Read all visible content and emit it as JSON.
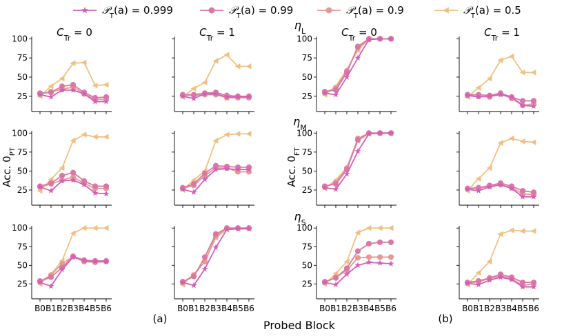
{
  "figure": {
    "xlabel": "Probed Block",
    "ylabel_left": "Acc. 0",
    "ylabel_sub": "PT",
    "ylabel_right": "Acc. 0",
    "ylabel_right_sub": "FT",
    "panel_a_label": "(a)",
    "panel_b_label": "(b)",
    "row_titles": [
      {
        "main": "η",
        "sub": "L"
      },
      {
        "main": "η",
        "sub": "M"
      },
      {
        "main": "η",
        "sub": "S"
      }
    ],
    "col_titles": [
      {
        "main": "C",
        "sub": "Tr",
        "rest": " = 0"
      },
      {
        "main": "C",
        "sub": "Tr",
        "rest": " = 1"
      },
      {
        "main": "C",
        "sub": "Tr",
        "rest": " = 0"
      },
      {
        "main": "C",
        "sub": "Tr",
        "rest": " = 1"
      }
    ]
  },
  "legend": [
    {
      "label": "𝒫",
      "sub": "T",
      "rest": "(a) = 0.999",
      "color": "#d35fb7",
      "marker": "star"
    },
    {
      "label": "𝒫",
      "sub": "T",
      "rest": "(a) = 0.99",
      "color": "#d978a6",
      "marker": "circle"
    },
    {
      "label": "𝒫",
      "sub": "T",
      "rest": "(a) = 0.9",
      "color": "#e69a93",
      "marker": "circle"
    },
    {
      "label": "𝒫",
      "sub": "T",
      "rest": "(a) = 0.5",
      "color": "#f0c080",
      "marker": "triangle"
    }
  ],
  "chart_data": {
    "type": "line",
    "categories": [
      "B0",
      "B1",
      "B2",
      "B3",
      "B4",
      "B5",
      "B6"
    ],
    "yticks": [
      25,
      50,
      75,
      100
    ],
    "ylim": [
      5,
      103
    ],
    "series_names": [
      "P_T(a) = 0.999",
      "P_T(a) = 0.99",
      "P_T(a) = 0.9",
      "P_T(a) = 0.5"
    ],
    "panels": [
      {
        "row": 0,
        "col": 0,
        "series": [
          [
            27,
            24,
            33,
            33,
            28,
            18,
            18
          ],
          [
            29,
            30,
            38,
            40,
            30,
            23,
            24
          ],
          [
            28,
            31,
            34,
            37,
            28,
            21,
            21
          ],
          [
            25,
            38,
            48,
            68,
            69,
            39,
            40
          ]
        ]
      },
      {
        "row": 0,
        "col": 1,
        "series": [
          [
            25,
            22,
            28,
            28,
            24,
            24,
            24
          ],
          [
            27,
            27,
            29,
            30,
            26,
            25,
            25
          ],
          [
            26,
            26,
            27,
            27,
            23,
            23,
            23
          ],
          [
            24,
            35,
            43,
            71,
            79,
            64,
            64
          ]
        ]
      },
      {
        "row": 0,
        "col": 2,
        "series": [
          [
            29,
            27,
            50,
            75,
            99,
            100,
            100
          ],
          [
            31,
            33,
            56,
            90,
            100,
            100,
            100
          ],
          [
            30,
            36,
            58,
            88,
            99,
            100,
            100
          ],
          [
            27,
            38,
            60,
            85,
            100,
            100,
            100
          ]
        ]
      },
      {
        "row": 0,
        "col": 3,
        "series": [
          [
            26,
            24,
            25,
            27,
            24,
            13,
            12
          ],
          [
            27,
            27,
            26,
            29,
            24,
            19,
            19
          ],
          [
            26,
            25,
            24,
            28,
            22,
            13,
            15
          ],
          [
            24,
            36,
            48,
            72,
            77,
            56,
            56
          ]
        ]
      },
      {
        "row": 1,
        "col": 0,
        "series": [
          [
            29,
            24,
            37,
            38,
            32,
            21,
            20
          ],
          [
            30,
            34,
            44,
            48,
            37,
            30,
            30
          ],
          [
            29,
            33,
            38,
            42,
            34,
            27,
            27
          ],
          [
            24,
            39,
            54,
            90,
            98,
            95,
            95
          ]
        ]
      },
      {
        "row": 1,
        "col": 1,
        "series": [
          [
            26,
            22,
            39,
            52,
            53,
            52,
            52
          ],
          [
            28,
            33,
            47,
            57,
            56,
            55,
            55
          ],
          [
            27,
            31,
            44,
            54,
            54,
            49,
            49
          ],
          [
            25,
            38,
            50,
            90,
            98,
            99,
            99
          ]
        ]
      },
      {
        "row": 1,
        "col": 2,
        "series": [
          [
            28,
            26,
            46,
            76,
            99,
            100,
            100
          ],
          [
            30,
            33,
            52,
            91,
            100,
            100,
            100
          ],
          [
            29,
            35,
            54,
            93,
            100,
            100,
            100
          ],
          [
            27,
            38,
            55,
            90,
            99,
            100,
            100
          ]
        ]
      },
      {
        "row": 1,
        "col": 3,
        "series": [
          [
            26,
            24,
            29,
            32,
            27,
            16,
            16
          ],
          [
            27,
            28,
            31,
            34,
            30,
            24,
            22
          ],
          [
            27,
            27,
            30,
            32,
            28,
            20,
            19
          ],
          [
            24,
            40,
            54,
            87,
            93,
            89,
            88
          ]
        ]
      },
      {
        "row": 2,
        "col": 0,
        "series": [
          [
            27,
            22,
            44,
            61,
            56,
            55,
            55
          ],
          [
            29,
            34,
            47,
            62,
            57,
            56,
            56
          ],
          [
            28,
            37,
            52,
            62,
            55,
            54,
            55
          ],
          [
            25,
            38,
            56,
            93,
            100,
            100,
            100
          ]
        ]
      },
      {
        "row": 2,
        "col": 1,
        "series": [
          [
            27,
            23,
            45,
            74,
            98,
            99,
            99
          ],
          [
            28,
            35,
            61,
            92,
            100,
            100,
            100
          ],
          [
            27,
            37,
            55,
            89,
            100,
            100,
            100
          ],
          [
            24,
            38,
            55,
            87,
            98,
            99,
            99
          ]
        ]
      },
      {
        "row": 2,
        "col": 2,
        "series": [
          [
            27,
            24,
            38,
            50,
            54,
            53,
            52
          ],
          [
            28,
            33,
            46,
            69,
            79,
            81,
            81
          ],
          [
            27,
            34,
            43,
            60,
            61,
            61,
            61
          ],
          [
            25,
            39,
            55,
            94,
            100,
            100,
            100
          ]
        ]
      },
      {
        "row": 2,
        "col": 3,
        "series": [
          [
            26,
            24,
            30,
            34,
            31,
            21,
            21
          ],
          [
            27,
            29,
            33,
            38,
            34,
            27,
            27
          ],
          [
            26,
            28,
            32,
            36,
            32,
            23,
            25
          ],
          [
            24,
            40,
            55,
            92,
            97,
            96,
            96
          ]
        ]
      }
    ]
  }
}
